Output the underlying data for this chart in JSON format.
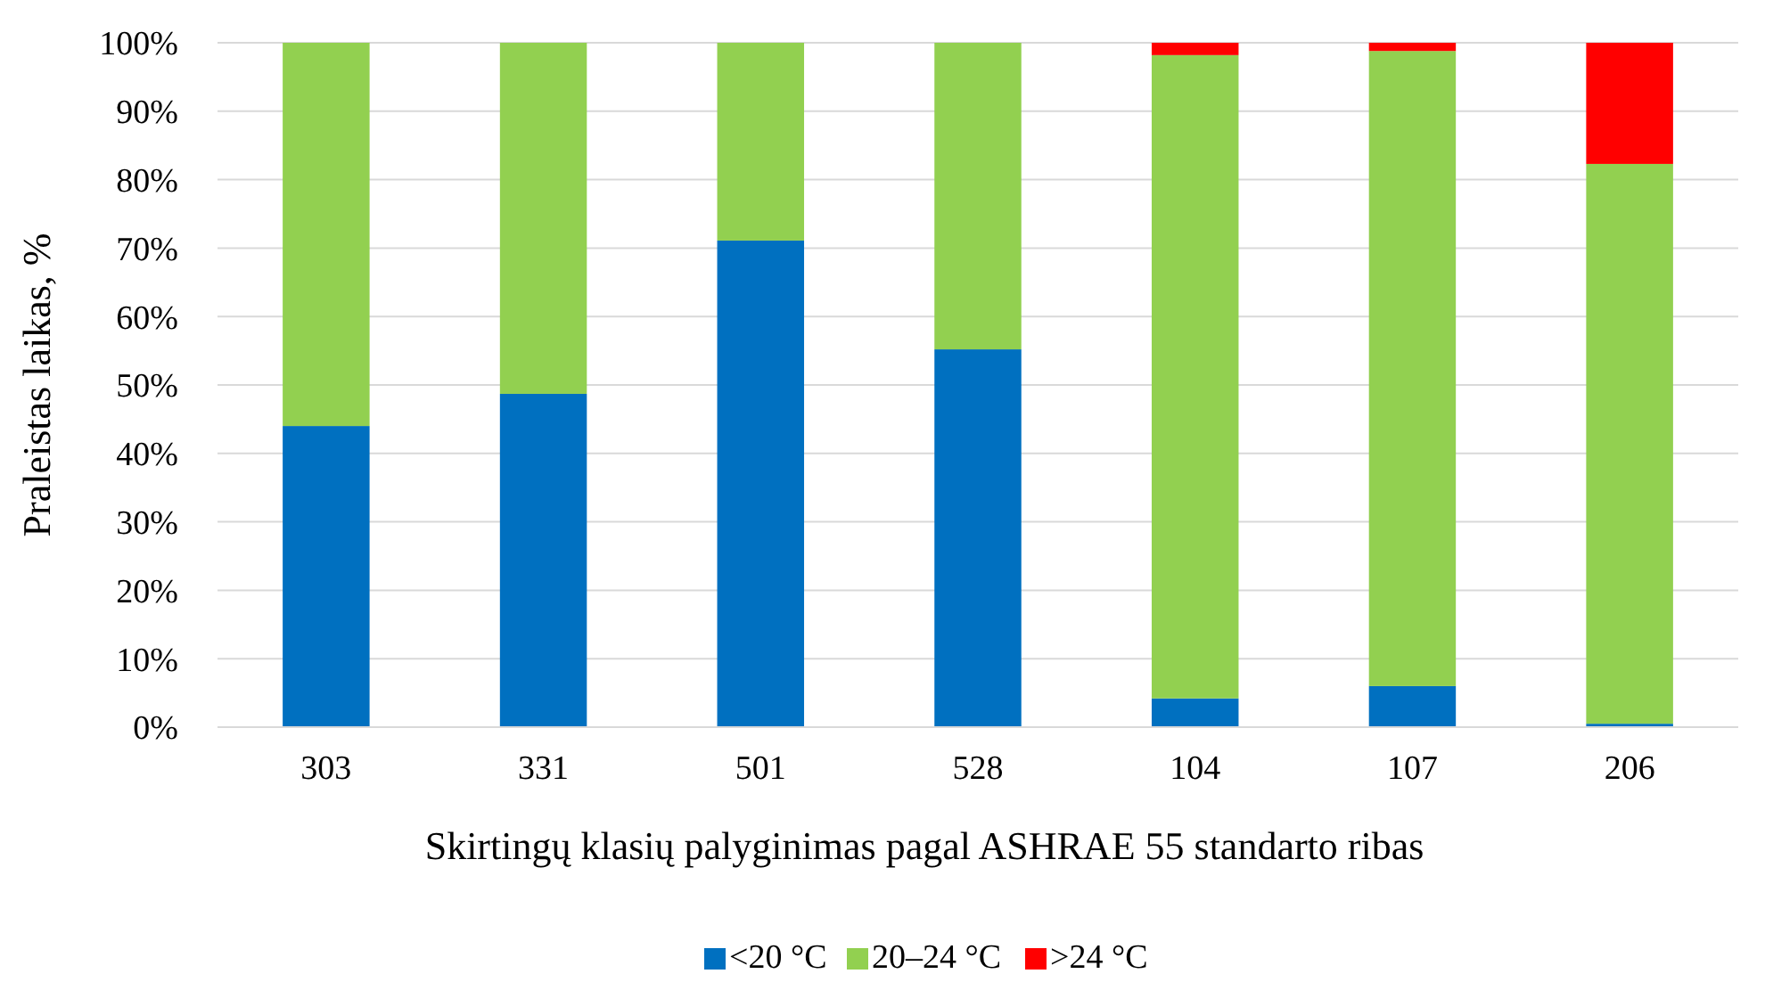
{
  "chart_data": {
    "type": "bar",
    "stacked": true,
    "xlabel": "Skirtingų klasių palyginimas pagal ASHRAE 55 standarto ribas",
    "ylabel": "Praleistas laikas, %",
    "categories": [
      "303",
      "331",
      "501",
      "528",
      "104",
      "107",
      "206"
    ],
    "series": [
      {
        "name": "<20 °C",
        "color": "#0070c0",
        "values": [
          44,
          48.7,
          71.1,
          55.2,
          4.2,
          6,
          0.5
        ]
      },
      {
        "name": "20–24 °C",
        "color": "#92d050",
        "values": [
          56,
          51.3,
          28.9,
          44.8,
          94,
          92.8,
          81.8
        ]
      },
      {
        "name": ">24 °C",
        "color": "#ff0000",
        "values": [
          0,
          0,
          0,
          0,
          1.8,
          1.2,
          17.7
        ]
      }
    ],
    "ylim": [
      0,
      100
    ],
    "yticks": [
      {
        "value": 0,
        "label": "0%"
      },
      {
        "value": 10,
        "label": "10%"
      },
      {
        "value": 20,
        "label": "20%"
      },
      {
        "value": 30,
        "label": "30%"
      },
      {
        "value": 40,
        "label": "40%"
      },
      {
        "value": 50,
        "label": "50%"
      },
      {
        "value": 60,
        "label": "60%"
      },
      {
        "value": 70,
        "label": "70%"
      },
      {
        "value": 80,
        "label": "80%"
      },
      {
        "value": 90,
        "label": "90%"
      },
      {
        "value": 100,
        "label": "100%"
      }
    ],
    "grid": "y",
    "legend": "bottom"
  }
}
